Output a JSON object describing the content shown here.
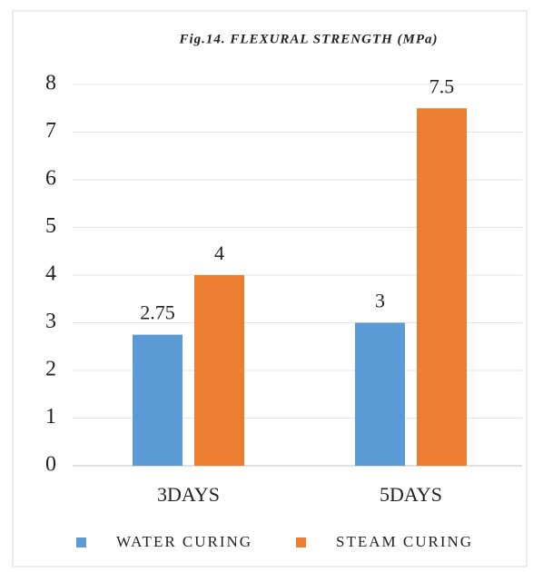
{
  "chart_data": {
    "type": "bar",
    "title": "Fig.14.  FLEXURAL STRENGTH (MPa)",
    "categories": [
      "3DAYS",
      "5DAYS"
    ],
    "series": [
      {
        "name": "WATER CURING",
        "color": "#5b9bd5",
        "values": [
          2.75,
          3
        ]
      },
      {
        "name": "STEAM CURING",
        "color": "#ed7d31",
        "values": [
          4,
          7.5
        ]
      }
    ],
    "ylim": [
      0,
      8
    ],
    "yticks": [
      0,
      1,
      2,
      3,
      4,
      5,
      6,
      7,
      8
    ],
    "grid": true,
    "legend": "bottom"
  }
}
